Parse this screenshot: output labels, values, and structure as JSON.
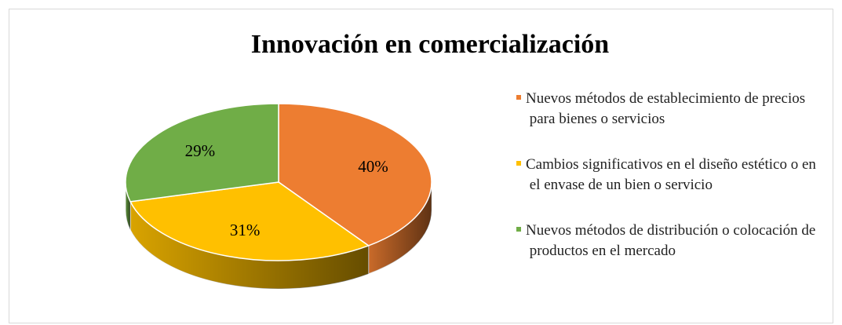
{
  "chart_data": {
    "type": "pie",
    "title": "Innovación en comercialización",
    "categories": [
      "Nuevos métodos de establecimiento de precios para bienes o servicios",
      "Cambios significativos en el diseño estético o en el envase de un bien o servicio",
      "Nuevos métodos de distribución o colocación de productos en el mercado"
    ],
    "values": [
      40,
      31,
      29
    ],
    "value_labels": [
      "40%",
      "31%",
      "29%"
    ],
    "colors": [
      "#ED7D31",
      "#FFC000",
      "#70AD47"
    ],
    "legend": "right"
  }
}
